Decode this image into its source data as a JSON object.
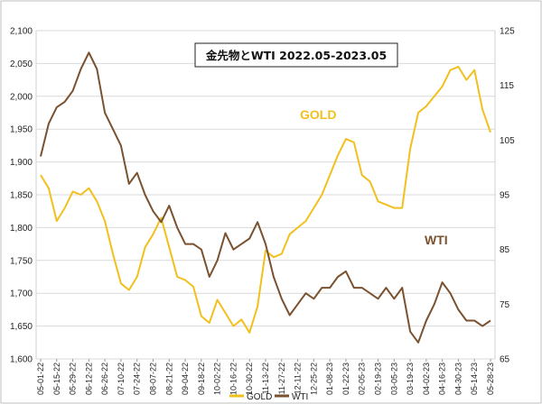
{
  "chart_data": {
    "type": "line",
    "title": "金先物とWTI  2022.05-2023.05",
    "x_ticks": [
      "05-01-22",
      "05-15-22",
      "05-29-22",
      "06-12-22",
      "06-26-22",
      "07-10-22",
      "07-24-22",
      "08-07-22",
      "08-21-22",
      "09-04-22",
      "09-18-22",
      "10-02-22",
      "10-16-22",
      "10-30-22",
      "11-13-22",
      "11-27-22",
      "12-11-22",
      "12-25-22",
      "01-08-23",
      "01-22-23",
      "02-05-23",
      "02-19-23",
      "03-05-23",
      "03-19-23",
      "04-02-23",
      "04-16-23",
      "04-30-23",
      "05-14-23",
      "05-28-23"
    ],
    "y_left": {
      "min": 1600,
      "max": 2100,
      "ticks": [
        "1,600",
        "1,650",
        "1,700",
        "1,750",
        "1,800",
        "1,850",
        "1,900",
        "1,950",
        "2,000",
        "2,050",
        "2,100"
      ]
    },
    "y_right": {
      "min": 65,
      "max": 125,
      "ticks": [
        "65",
        "75",
        "85",
        "95",
        "105",
        "115",
        "125"
      ]
    },
    "grid": "horizontal",
    "legend_position": "bottom",
    "series": [
      {
        "name": "GOLD",
        "axis": "left",
        "color": "#f2c01e",
        "inline_label": "GOLD",
        "x": [
          "05-01-22",
          "05-08-22",
          "05-15-22",
          "05-22-22",
          "05-29-22",
          "06-05-22",
          "06-12-22",
          "06-19-22",
          "06-26-22",
          "07-03-22",
          "07-10-22",
          "07-17-22",
          "07-24-22",
          "07-31-22",
          "08-07-22",
          "08-14-22",
          "08-21-22",
          "08-28-22",
          "09-04-22",
          "09-11-22",
          "09-18-22",
          "09-25-22",
          "10-02-22",
          "10-09-22",
          "10-16-22",
          "10-23-22",
          "10-30-22",
          "11-06-22",
          "11-13-22",
          "11-20-22",
          "11-27-22",
          "12-04-22",
          "12-11-22",
          "12-18-22",
          "12-25-22",
          "01-01-23",
          "01-08-23",
          "01-15-23",
          "01-22-23",
          "01-29-23",
          "02-05-23",
          "02-12-23",
          "02-19-23",
          "02-26-23",
          "03-05-23",
          "03-12-23",
          "03-19-23",
          "03-26-23",
          "04-02-23",
          "04-09-23",
          "04-16-23",
          "04-23-23",
          "04-30-23",
          "05-07-23",
          "05-14-23",
          "05-21-23",
          "05-28-23"
        ],
        "values": [
          1880,
          1860,
          1810,
          1830,
          1855,
          1850,
          1860,
          1840,
          1810,
          1760,
          1715,
          1705,
          1725,
          1770,
          1790,
          1815,
          1770,
          1725,
          1720,
          1710,
          1665,
          1655,
          1690,
          1670,
          1650,
          1660,
          1640,
          1680,
          1765,
          1755,
          1760,
          1790,
          1800,
          1810,
          1830,
          1850,
          1880,
          1910,
          1935,
          1930,
          1880,
          1870,
          1840,
          1835,
          1830,
          1830,
          1920,
          1975,
          1985,
          2000,
          2015,
          2040,
          2045,
          2025,
          2040,
          1980,
          1945
        ]
      },
      {
        "name": "WTI",
        "axis": "right",
        "color": "#7a5230",
        "inline_label": "WTI",
        "x": [
          "05-01-22",
          "05-08-22",
          "05-15-22",
          "05-22-22",
          "05-29-22",
          "06-05-22",
          "06-12-22",
          "06-19-22",
          "06-26-22",
          "07-03-22",
          "07-10-22",
          "07-17-22",
          "07-24-22",
          "07-31-22",
          "08-07-22",
          "08-14-22",
          "08-21-22",
          "08-28-22",
          "09-04-22",
          "09-11-22",
          "09-18-22",
          "09-25-22",
          "10-02-22",
          "10-09-22",
          "10-16-22",
          "10-23-22",
          "10-30-22",
          "11-06-22",
          "11-13-22",
          "11-20-22",
          "11-27-22",
          "12-04-22",
          "12-11-22",
          "12-18-22",
          "12-25-22",
          "01-01-23",
          "01-08-23",
          "01-15-23",
          "01-22-23",
          "01-29-23",
          "02-05-23",
          "02-12-23",
          "02-19-23",
          "02-26-23",
          "03-05-23",
          "03-12-23",
          "03-19-23",
          "03-26-23",
          "04-02-23",
          "04-09-23",
          "04-16-23",
          "04-23-23",
          "04-30-23",
          "05-07-23",
          "05-14-23",
          "05-21-23",
          "05-28-23"
        ],
        "values": [
          102,
          108,
          111,
          112,
          114,
          118,
          121,
          118,
          110,
          107,
          104,
          97,
          99,
          95,
          92,
          90,
          93,
          89,
          86,
          86,
          85,
          80,
          83,
          88,
          85,
          86,
          87,
          90,
          86,
          80,
          76,
          73,
          75,
          77,
          76,
          78,
          78,
          80,
          81,
          78,
          78,
          77,
          76,
          78,
          76,
          78,
          70,
          68,
          72,
          75,
          79,
          77,
          74,
          72,
          72,
          71,
          72
        ]
      }
    ]
  }
}
